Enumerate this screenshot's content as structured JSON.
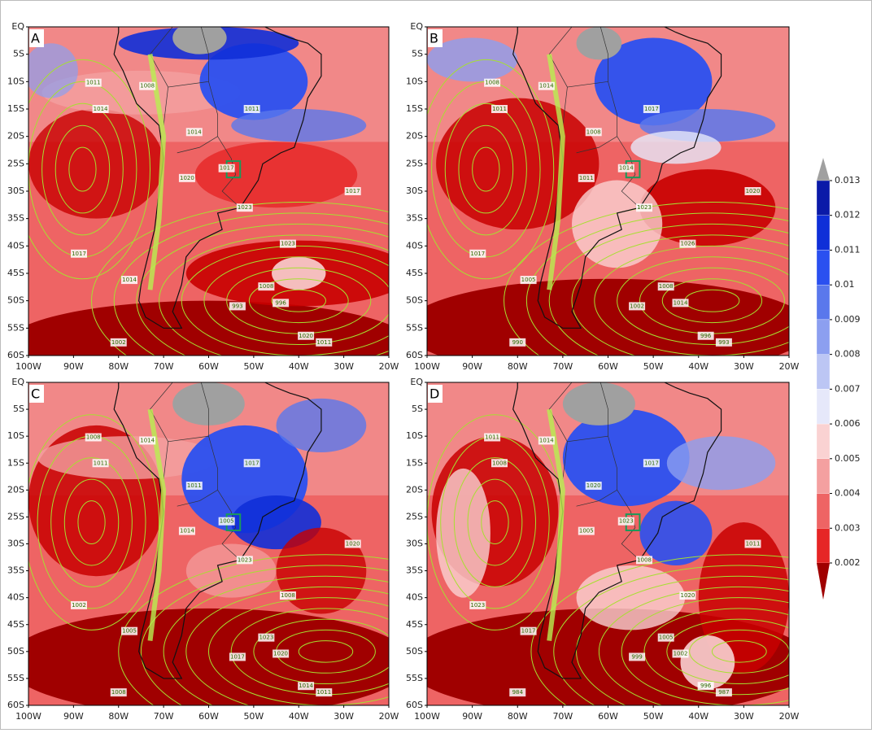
{
  "map": {
    "latlim": [
      -60,
      0
    ],
    "lonlim": [
      -100,
      -20
    ],
    "lat_ticks": [
      {
        "value": 0,
        "label": "EQ"
      },
      {
        "value": -5,
        "label": "5S"
      },
      {
        "value": -10,
        "label": "10S"
      },
      {
        "value": -15,
        "label": "15S"
      },
      {
        "value": -20,
        "label": "20S"
      },
      {
        "value": -25,
        "label": "25S"
      },
      {
        "value": -30,
        "label": "30S"
      },
      {
        "value": -35,
        "label": "35S"
      },
      {
        "value": -40,
        "label": "40S"
      },
      {
        "value": -45,
        "label": "45S"
      },
      {
        "value": -50,
        "label": "50S"
      },
      {
        "value": -55,
        "label": "55S"
      },
      {
        "value": -60,
        "label": "60S"
      }
    ],
    "lon_ticks": [
      {
        "value": -100,
        "label": "100W"
      },
      {
        "value": -90,
        "label": "90W"
      },
      {
        "value": -80,
        "label": "80W"
      },
      {
        "value": -70,
        "label": "70W"
      },
      {
        "value": -60,
        "label": "60W"
      },
      {
        "value": -50,
        "label": "50W"
      },
      {
        "value": -40,
        "label": "40W"
      },
      {
        "value": -30,
        "label": "30W"
      },
      {
        "value": -20,
        "label": "20W"
      }
    ]
  },
  "panels": [
    {
      "label": "A",
      "contour_labels": [
        "1011",
        "1014",
        "1008",
        "1011",
        "1014",
        "1017",
        "1020",
        "1017",
        "1023",
        "1023",
        "1017",
        "1014",
        "1008",
        "996",
        "993",
        "1020",
        "1011",
        "1002"
      ]
    },
    {
      "label": "B",
      "contour_labels": [
        "1008",
        "1011",
        "1014",
        "1017",
        "1008",
        "1014",
        "1011",
        "1020",
        "1023",
        "1026",
        "1017",
        "1005",
        "1008",
        "1014",
        "1002",
        "996",
        "993",
        "990"
      ]
    },
    {
      "label": "C",
      "contour_labels": [
        "1008",
        "1011",
        "1014",
        "1017",
        "1011",
        "1005",
        "1014",
        "1020",
        "1023",
        "1008",
        "1002",
        "1005",
        "1023",
        "1020",
        "1017",
        "1014",
        "1011",
        "1008"
      ]
    },
    {
      "label": "D",
      "contour_labels": [
        "1011",
        "1008",
        "1014",
        "1017",
        "1020",
        "1023",
        "1005",
        "1011",
        "1008",
        "1020",
        "1023",
        "1017",
        "1005",
        "1002",
        "999",
        "996",
        "987",
        "984"
      ]
    }
  ],
  "colorbar": {
    "ticks": [
      0.013,
      0.012,
      0.011,
      0.01,
      0.009,
      0.008,
      0.007,
      0.006,
      0.005,
      0.004,
      0.003,
      0.002
    ],
    "colors": [
      "#a0a0a0",
      "#0a1aa8",
      "#0f2fd8",
      "#2a50f0",
      "#5a78ec",
      "#8c9ff0",
      "#bcc6f4",
      "#e6e8fa",
      "#fad2d2",
      "#f4a0a0",
      "#ee6464",
      "#e62626",
      "#c80000",
      "#a00000"
    ]
  }
}
